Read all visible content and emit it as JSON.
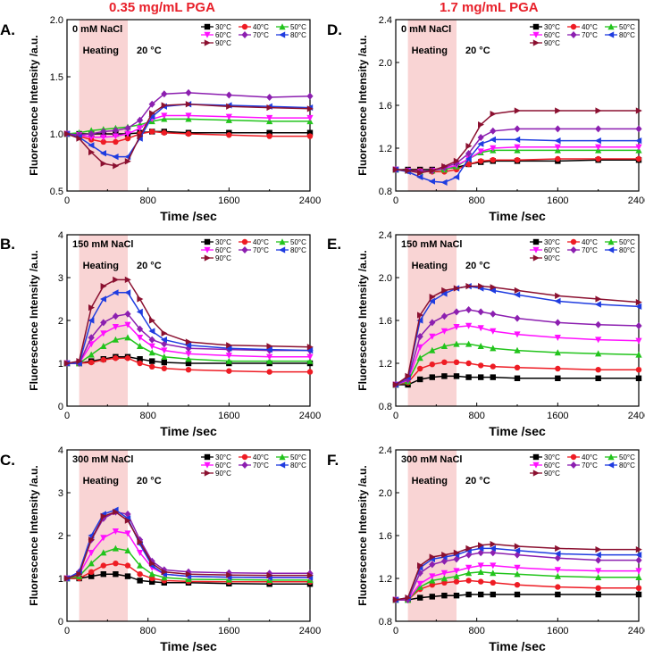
{
  "column_titles": [
    "0.35 mg/mL PGA",
    "1.7 mg/mL PGA"
  ],
  "legend_colors": {
    "30°C": "#000000",
    "40°C": "#ee1c24",
    "50°C": "#22c41c",
    "60°C": "#ff10ff",
    "70°C": "#8c1fb0",
    "80°C": "#1f3ce0",
    "90°C": "#8b1030"
  },
  "chart_data": [
    {
      "type": "line",
      "panel": "A.",
      "col": 0,
      "row": 0,
      "salt": "0 mM NaCl",
      "heating_label": "Heating",
      "ambient_label": "20 °C",
      "xlabel": "Time /sec",
      "ylabel": "Fluorescence Intensity /a.u.",
      "xlim": [
        0,
        2400
      ],
      "ylim": [
        0.5,
        2.0
      ],
      "xticks": [
        0,
        800,
        1600,
        2400
      ],
      "yticks": [
        0.5,
        1.0,
        1.5,
        2.0
      ],
      "ytick_labels": [
        "0.5",
        "1.0",
        "1.5",
        "2.0"
      ],
      "heating_range": [
        120,
        600
      ],
      "x": [
        0,
        120,
        240,
        360,
        480,
        600,
        720,
        840,
        960,
        1200,
        1600,
        2000,
        2400
      ],
      "series": [
        {
          "name": "30°C",
          "values": [
            1.0,
            1.0,
            1.0,
            1.0,
            1.0,
            1.0,
            1.01,
            1.02,
            1.02,
            1.01,
            1.01,
            1.01,
            1.01
          ]
        },
        {
          "name": "40°C",
          "values": [
            1.0,
            0.98,
            0.95,
            0.93,
            0.93,
            0.96,
            1.0,
            1.02,
            1.01,
            1.0,
            0.99,
            0.98,
            0.98
          ]
        },
        {
          "name": "50°C",
          "values": [
            1.0,
            1.01,
            1.03,
            1.04,
            1.05,
            1.06,
            1.08,
            1.11,
            1.13,
            1.13,
            1.12,
            1.11,
            1.11
          ]
        },
        {
          "name": "60°C",
          "values": [
            1.0,
            0.99,
            0.97,
            0.97,
            0.98,
            1.0,
            1.05,
            1.13,
            1.16,
            1.16,
            1.15,
            1.14,
            1.14
          ]
        },
        {
          "name": "70°C",
          "values": [
            1.0,
            0.99,
            1.0,
            1.02,
            1.03,
            1.05,
            1.12,
            1.26,
            1.35,
            1.36,
            1.34,
            1.32,
            1.33
          ]
        },
        {
          "name": "80°C",
          "values": [
            1.0,
            0.97,
            0.9,
            0.83,
            0.8,
            0.8,
            0.96,
            1.15,
            1.24,
            1.26,
            1.25,
            1.24,
            1.23
          ]
        },
        {
          "name": "90°C",
          "values": [
            1.0,
            0.96,
            0.84,
            0.74,
            0.72,
            0.76,
            0.98,
            1.18,
            1.25,
            1.26,
            1.24,
            1.23,
            1.22
          ]
        }
      ]
    },
    {
      "type": "line",
      "panel": "B.",
      "col": 0,
      "row": 1,
      "salt": "150 mM NaCl",
      "heating_label": "Heating",
      "ambient_label": "20 °C",
      "xlabel": "Time /sec",
      "ylabel": "Fluorescence Intensity /a.u.",
      "xlim": [
        0,
        2400
      ],
      "ylim": [
        0,
        4
      ],
      "xticks": [
        0,
        800,
        1600,
        2400
      ],
      "yticks": [
        0,
        1,
        2,
        3,
        4
      ],
      "ytick_labels": [
        "0",
        "1",
        "2",
        "3",
        "4"
      ],
      "heating_range": [
        120,
        600
      ],
      "x": [
        0,
        120,
        240,
        360,
        480,
        600,
        720,
        840,
        960,
        1200,
        1600,
        2000,
        2400
      ],
      "series": [
        {
          "name": "30°C",
          "values": [
            1.0,
            1.0,
            1.05,
            1.1,
            1.15,
            1.15,
            1.1,
            1.05,
            1.02,
            1.0,
            1.0,
            1.0,
            1.0
          ]
        },
        {
          "name": "40°C",
          "values": [
            1.0,
            1.0,
            1.02,
            1.08,
            1.12,
            1.12,
            1.0,
            0.92,
            0.88,
            0.85,
            0.82,
            0.8,
            0.8
          ]
        },
        {
          "name": "50°C",
          "values": [
            1.0,
            1.0,
            1.2,
            1.4,
            1.55,
            1.6,
            1.4,
            1.25,
            1.15,
            1.1,
            1.05,
            1.05,
            1.05
          ]
        },
        {
          "name": "60°C",
          "values": [
            1.0,
            1.0,
            1.45,
            1.7,
            1.85,
            1.9,
            1.6,
            1.4,
            1.3,
            1.22,
            1.18,
            1.15,
            1.15
          ]
        },
        {
          "name": "70°C",
          "values": [
            1.0,
            1.0,
            1.6,
            1.95,
            2.1,
            2.15,
            1.8,
            1.55,
            1.45,
            1.35,
            1.32,
            1.3,
            1.3
          ]
        },
        {
          "name": "80°C",
          "values": [
            1.0,
            1.0,
            2.0,
            2.5,
            2.65,
            2.65,
            2.2,
            1.75,
            1.55,
            1.42,
            1.35,
            1.32,
            1.3
          ]
        },
        {
          "name": "90°C",
          "values": [
            1.0,
            1.05,
            2.3,
            2.8,
            2.95,
            2.95,
            2.5,
            2.0,
            1.7,
            1.5,
            1.42,
            1.4,
            1.38
          ]
        }
      ]
    },
    {
      "type": "line",
      "panel": "C.",
      "col": 0,
      "row": 2,
      "salt": "300 mM NaCl",
      "heating_label": "Heating",
      "ambient_label": "20 °C",
      "xlabel": "Time /sec",
      "ylabel": "Fluorescence Intensity /a.u.",
      "xlim": [
        0,
        2400
      ],
      "ylim": [
        0,
        4
      ],
      "xticks": [
        0,
        800,
        1600,
        2400
      ],
      "yticks": [
        0,
        1,
        2,
        3,
        4
      ],
      "ytick_labels": [
        "0",
        "1",
        "2",
        "3",
        "4"
      ],
      "heating_range": [
        120,
        600
      ],
      "x": [
        0,
        120,
        240,
        360,
        480,
        600,
        720,
        840,
        960,
        1200,
        1600,
        2000,
        2400
      ],
      "series": [
        {
          "name": "30°C",
          "values": [
            1.0,
            1.0,
            1.05,
            1.1,
            1.1,
            1.05,
            0.95,
            0.92,
            0.9,
            0.9,
            0.88,
            0.87,
            0.87
          ]
        },
        {
          "name": "40°C",
          "values": [
            1.0,
            1.0,
            1.15,
            1.3,
            1.35,
            1.3,
            1.1,
            1.0,
            0.95,
            0.93,
            0.92,
            0.92,
            0.92
          ]
        },
        {
          "name": "50°C",
          "values": [
            1.0,
            1.05,
            1.35,
            1.6,
            1.7,
            1.65,
            1.3,
            1.1,
            1.02,
            0.98,
            0.97,
            0.96,
            0.96
          ]
        },
        {
          "name": "60°C",
          "values": [
            1.0,
            1.1,
            1.6,
            1.95,
            2.1,
            2.05,
            1.6,
            1.25,
            1.1,
            1.05,
            1.03,
            1.02,
            1.02
          ]
        },
        {
          "name": "70°C",
          "values": [
            1.0,
            1.15,
            1.9,
            2.4,
            2.55,
            2.5,
            1.9,
            1.4,
            1.2,
            1.15,
            1.13,
            1.12,
            1.12
          ]
        },
        {
          "name": "80°C",
          "values": [
            1.0,
            1.15,
            2.0,
            2.5,
            2.6,
            2.4,
            1.8,
            1.3,
            1.1,
            1.05,
            1.03,
            1.02,
            1.02
          ]
        },
        {
          "name": "90°C",
          "values": [
            1.0,
            1.1,
            1.9,
            2.45,
            2.55,
            2.35,
            1.85,
            1.35,
            1.15,
            1.1,
            1.08,
            1.07,
            1.07
          ]
        }
      ]
    },
    {
      "type": "line",
      "panel": "D.",
      "col": 1,
      "row": 0,
      "salt": "0 mM NaCl",
      "heating_label": "Heating",
      "ambient_label": "20 °C",
      "xlabel": "Time /sec",
      "ylabel": "Fluorescence Intensity /a.u.",
      "xlim": [
        0,
        2400
      ],
      "ylim": [
        0.8,
        2.4
      ],
      "xticks": [
        0,
        800,
        1600,
        2400
      ],
      "yticks": [
        0.8,
        1.2,
        1.6,
        2.0,
        2.4
      ],
      "ytick_labels": [
        "0.8",
        "1.2",
        "1.6",
        "2.0",
        "2.4"
      ],
      "heating_range": [
        120,
        600
      ],
      "x": [
        0,
        120,
        240,
        360,
        480,
        600,
        720,
        840,
        960,
        1200,
        1600,
        2000,
        2400
      ],
      "series": [
        {
          "name": "30°C",
          "values": [
            1.0,
            1.0,
            1.0,
            1.0,
            1.01,
            1.02,
            1.05,
            1.07,
            1.08,
            1.08,
            1.08,
            1.09,
            1.09
          ]
        },
        {
          "name": "40°C",
          "values": [
            1.0,
            0.99,
            0.99,
            0.98,
            0.98,
            1.0,
            1.05,
            1.08,
            1.09,
            1.09,
            1.1,
            1.1,
            1.1
          ]
        },
        {
          "name": "50°C",
          "values": [
            1.0,
            0.99,
            0.98,
            0.99,
            1.0,
            1.03,
            1.1,
            1.16,
            1.18,
            1.18,
            1.18,
            1.18,
            1.18
          ]
        },
        {
          "name": "60°C",
          "values": [
            1.0,
            0.99,
            0.98,
            0.99,
            1.01,
            1.04,
            1.1,
            1.17,
            1.2,
            1.21,
            1.21,
            1.21,
            1.21
          ]
        },
        {
          "name": "70°C",
          "values": [
            1.0,
            0.99,
            0.98,
            0.99,
            1.02,
            1.06,
            1.15,
            1.3,
            1.36,
            1.38,
            1.38,
            1.38,
            1.38
          ]
        },
        {
          "name": "80°C",
          "values": [
            1.0,
            0.98,
            0.93,
            0.89,
            0.88,
            0.93,
            1.1,
            1.24,
            1.28,
            1.28,
            1.27,
            1.27,
            1.27
          ]
        },
        {
          "name": "90°C",
          "values": [
            1.0,
            0.99,
            0.97,
            0.99,
            1.03,
            1.08,
            1.22,
            1.42,
            1.52,
            1.55,
            1.55,
            1.55,
            1.55
          ]
        }
      ]
    },
    {
      "type": "line",
      "panel": "E.",
      "col": 1,
      "row": 1,
      "salt": "150 mM NaCl",
      "heating_label": "Heating",
      "ambient_label": "20 °C",
      "xlabel": "Time /sec",
      "ylabel": "Fluorescence Intensity /a.u.",
      "xlim": [
        0,
        2400
      ],
      "ylim": [
        0.8,
        2.4
      ],
      "xticks": [
        0,
        800,
        1600,
        2400
      ],
      "yticks": [
        0.8,
        1.2,
        1.6,
        2.0,
        2.4
      ],
      "ytick_labels": [
        "0.8",
        "1.2",
        "1.6",
        "2.0",
        "2.4"
      ],
      "heating_range": [
        120,
        600
      ],
      "x": [
        0,
        120,
        240,
        360,
        480,
        600,
        720,
        840,
        960,
        1200,
        1600,
        2000,
        2400
      ],
      "series": [
        {
          "name": "30°C",
          "values": [
            1.0,
            1.0,
            1.05,
            1.07,
            1.08,
            1.08,
            1.07,
            1.07,
            1.07,
            1.06,
            1.06,
            1.06,
            1.06
          ]
        },
        {
          "name": "40°C",
          "values": [
            1.0,
            1.02,
            1.15,
            1.19,
            1.21,
            1.21,
            1.2,
            1.18,
            1.17,
            1.16,
            1.15,
            1.14,
            1.14
          ]
        },
        {
          "name": "50°C",
          "values": [
            1.0,
            1.03,
            1.25,
            1.32,
            1.36,
            1.38,
            1.38,
            1.36,
            1.34,
            1.32,
            1.3,
            1.29,
            1.28
          ]
        },
        {
          "name": "60°C",
          "values": [
            1.0,
            1.04,
            1.35,
            1.45,
            1.5,
            1.54,
            1.55,
            1.53,
            1.5,
            1.47,
            1.44,
            1.42,
            1.41
          ]
        },
        {
          "name": "70°C",
          "values": [
            1.0,
            1.05,
            1.45,
            1.58,
            1.64,
            1.68,
            1.7,
            1.68,
            1.66,
            1.62,
            1.58,
            1.56,
            1.55
          ]
        },
        {
          "name": "80°C",
          "values": [
            1.0,
            1.07,
            1.6,
            1.78,
            1.85,
            1.9,
            1.92,
            1.9,
            1.88,
            1.84,
            1.78,
            1.75,
            1.73
          ]
        },
        {
          "name": "90°C",
          "values": [
            1.0,
            1.08,
            1.65,
            1.82,
            1.88,
            1.9,
            1.92,
            1.92,
            1.91,
            1.88,
            1.83,
            1.8,
            1.77
          ]
        }
      ]
    },
    {
      "type": "line",
      "panel": "F.",
      "col": 1,
      "row": 2,
      "salt": "300 mM NaCl",
      "heating_label": "Heating",
      "ambient_label": "20 °C",
      "xlabel": "Time /sec",
      "ylabel": "Fluorescence Intensity /a.u.",
      "xlim": [
        0,
        2400
      ],
      "ylim": [
        0.8,
        2.4
      ],
      "xticks": [
        0,
        800,
        1600,
        2400
      ],
      "yticks": [
        0.8,
        1.2,
        1.6,
        2.0,
        2.4
      ],
      "ytick_labels": [
        "0.8",
        "1.2",
        "1.6",
        "2.0",
        "2.4"
      ],
      "heating_range": [
        120,
        600
      ],
      "x": [
        0,
        120,
        240,
        360,
        480,
        600,
        720,
        840,
        960,
        1200,
        1600,
        2000,
        2400
      ],
      "series": [
        {
          "name": "30°C",
          "values": [
            1.0,
            1.0,
            1.02,
            1.03,
            1.04,
            1.04,
            1.05,
            1.05,
            1.05,
            1.05,
            1.05,
            1.05,
            1.05
          ]
        },
        {
          "name": "40°C",
          "values": [
            1.0,
            1.0,
            1.1,
            1.14,
            1.16,
            1.17,
            1.18,
            1.17,
            1.16,
            1.14,
            1.12,
            1.11,
            1.11
          ]
        },
        {
          "name": "50°C",
          "values": [
            1.0,
            1.0,
            1.12,
            1.18,
            1.2,
            1.22,
            1.25,
            1.26,
            1.25,
            1.24,
            1.22,
            1.21,
            1.21
          ]
        },
        {
          "name": "60°C",
          "values": [
            1.0,
            1.0,
            1.15,
            1.22,
            1.25,
            1.27,
            1.3,
            1.32,
            1.32,
            1.3,
            1.28,
            1.27,
            1.27
          ]
        },
        {
          "name": "70°C",
          "values": [
            1.0,
            1.0,
            1.25,
            1.33,
            1.36,
            1.38,
            1.42,
            1.44,
            1.44,
            1.42,
            1.39,
            1.37,
            1.37
          ]
        },
        {
          "name": "80°C",
          "values": [
            1.0,
            1.02,
            1.3,
            1.38,
            1.4,
            1.42,
            1.46,
            1.48,
            1.48,
            1.46,
            1.43,
            1.42,
            1.42
          ]
        },
        {
          "name": "90°C",
          "values": [
            1.0,
            1.02,
            1.32,
            1.4,
            1.42,
            1.44,
            1.48,
            1.51,
            1.52,
            1.5,
            1.48,
            1.47,
            1.47
          ]
        }
      ]
    }
  ]
}
